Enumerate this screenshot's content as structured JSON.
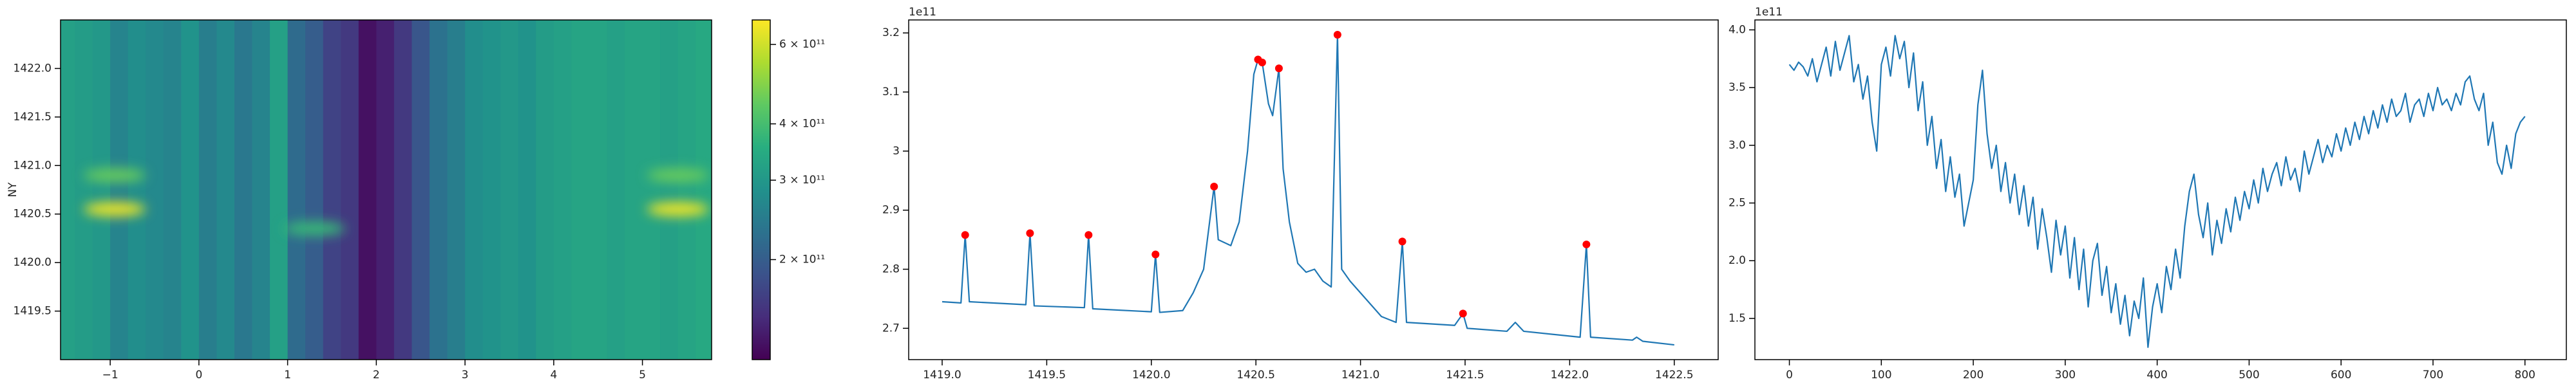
{
  "chart_data": [
    {
      "type": "heatmap",
      "ylabel": "NY",
      "xlim": [
        -1.56,
        5.78
      ],
      "ylim": [
        1419.0,
        1422.5
      ],
      "xticks": [
        {
          "value": -1,
          "label": "−1"
        },
        0,
        1,
        2,
        3,
        4,
        5
      ],
      "yticks": [
        1419.5,
        {
          "value": 1420,
          "label": "1420.0"
        },
        1420.5,
        {
          "value": 1421,
          "label": "1421.0"
        },
        1421.5,
        {
          "value": 1422,
          "label": "1422.0"
        }
      ],
      "x_edges": [
        -1.6,
        -1.4,
        -1.2,
        -1.0,
        -0.8,
        -0.6,
        -0.4,
        -0.2,
        0.0,
        0.2,
        0.4,
        0.6,
        0.8,
        1.0,
        1.2,
        1.4,
        1.6,
        1.8,
        2.0,
        2.2,
        2.4,
        2.6,
        2.8,
        3.0,
        3.2,
        3.4,
        3.6,
        3.8,
        4.0,
        4.2,
        4.4,
        4.6,
        4.8,
        5.0,
        5.2,
        5.4,
        5.6,
        5.8
      ],
      "column_values": [
        320000000000.0,
        310000000000.0,
        300000000000.0,
        260000000000.0,
        280000000000.0,
        270000000000.0,
        260000000000.0,
        290000000000.0,
        250000000000.0,
        270000000000.0,
        240000000000.0,
        260000000000.0,
        320000000000.0,
        220000000000.0,
        200000000000.0,
        170000000000.0,
        160000000000.0,
        130000000000.0,
        140000000000.0,
        160000000000.0,
        190000000000.0,
        230000000000.0,
        250000000000.0,
        280000000000.0,
        290000000000.0,
        300000000000.0,
        290000000000.0,
        310000000000.0,
        320000000000.0,
        330000000000.0,
        330000000000.0,
        320000000000.0,
        330000000000.0,
        330000000000.0,
        320000000000.0,
        330000000000.0,
        340000000000.0
      ],
      "hotspots": [
        {
          "x": -0.95,
          "y": 1420.55,
          "value": 650000000000.0
        },
        {
          "x": -0.95,
          "y": 1420.9,
          "value": 450000000000.0
        },
        {
          "x": 1.3,
          "y": 1420.35,
          "value": 380000000000.0
        },
        {
          "x": 5.4,
          "y": 1420.55,
          "value": 650000000000.0
        },
        {
          "x": 5.4,
          "y": 1420.9,
          "value": 450000000000.0
        }
      ],
      "colorbar": {
        "log": true,
        "colormap": "viridis",
        "lim": [
          120000000000.0,
          680000000000.0
        ],
        "ticks": [
          {
            "value": 200000000000.0,
            "label": "2 × 10¹¹"
          },
          {
            "value": 300000000000.0,
            "label": "3 × 10¹¹"
          },
          {
            "value": 400000000000.0,
            "label": "4 × 10¹¹"
          },
          {
            "value": 600000000000.0,
            "label": "6 × 10¹¹"
          }
        ]
      }
    },
    {
      "type": "line",
      "offset_text": "1e11",
      "xlim": [
        1418.84,
        1422.71
      ],
      "ylim": [
        2.647,
        3.222
      ],
      "xticks": [
        {
          "value": 1419,
          "label": "1419.0"
        },
        1419.5,
        {
          "value": 1420,
          "label": "1420.0"
        },
        1420.5,
        {
          "value": 1421,
          "label": "1421.0"
        },
        1421.5,
        {
          "value": 1422,
          "label": "1422.0"
        },
        1422.5
      ],
      "yticks": [
        2.7,
        2.8,
        2.9,
        3.0,
        3.1,
        3.2
      ],
      "x": [
        1419.0,
        1419.09,
        1419.11,
        1419.13,
        1419.4,
        1419.42,
        1419.44,
        1419.68,
        1419.7,
        1419.72,
        1420.0,
        1420.02,
        1420.04,
        1420.15,
        1420.2,
        1420.25,
        1420.3,
        1420.32,
        1420.38,
        1420.42,
        1420.46,
        1420.49,
        1420.51,
        1420.53,
        1420.56,
        1420.58,
        1420.61,
        1420.63,
        1420.66,
        1420.7,
        1420.74,
        1420.78,
        1420.82,
        1420.86,
        1420.89,
        1420.91,
        1420.95,
        1421.0,
        1421.1,
        1421.17,
        1421.2,
        1421.22,
        1421.45,
        1421.49,
        1421.51,
        1421.7,
        1421.74,
        1421.78,
        1422.05,
        1422.08,
        1422.1,
        1422.3,
        1422.32,
        1422.35,
        1422.5
      ],
      "series": [
        {
          "color": "#1f77b4",
          "values": [
            2.745,
            2.743,
            2.858,
            2.745,
            2.74,
            2.861,
            2.738,
            2.735,
            2.858,
            2.733,
            2.728,
            2.825,
            2.727,
            2.73,
            2.76,
            2.8,
            2.94,
            2.85,
            2.84,
            2.88,
            3.0,
            3.13,
            3.155,
            3.15,
            3.08,
            3.06,
            3.14,
            2.97,
            2.88,
            2.81,
            2.795,
            2.8,
            2.78,
            2.77,
            3.197,
            2.8,
            2.78,
            2.76,
            2.72,
            2.71,
            2.847,
            2.71,
            2.705,
            2.725,
            2.7,
            2.695,
            2.71,
            2.695,
            2.685,
            2.842,
            2.685,
            2.68,
            2.685,
            2.678,
            2.672
          ]
        }
      ],
      "markers": {
        "color": "#ff0000",
        "x": [
          1419.11,
          1419.42,
          1419.7,
          1420.02,
          1420.3,
          1420.51,
          1420.53,
          1420.61,
          1420.89,
          1421.2,
          1421.49,
          1422.08
        ],
        "values": [
          2.858,
          2.861,
          2.858,
          2.825,
          2.94,
          3.155,
          3.15,
          3.14,
          3.197,
          2.847,
          2.725,
          2.842
        ]
      }
    },
    {
      "type": "line",
      "offset_text": "1e11",
      "xlim": [
        -37.5,
        845
      ],
      "ylim": [
        1.143,
        4.086
      ],
      "xticks": [
        0,
        100,
        200,
        300,
        400,
        500,
        600,
        700,
        800
      ],
      "yticks": [
        1.5,
        {
          "value": 2,
          "label": "2.0"
        },
        2.5,
        {
          "value": 3,
          "label": "3.0"
        },
        3.5,
        {
          "value": 4,
          "label": "4.0"
        }
      ],
      "x": [
        0,
        5,
        10,
        15,
        20,
        25,
        30,
        35,
        40,
        45,
        50,
        55,
        60,
        65,
        70,
        75,
        80,
        85,
        90,
        95,
        100,
        105,
        110,
        115,
        120,
        125,
        130,
        135,
        140,
        145,
        150,
        155,
        160,
        165,
        170,
        175,
        180,
        185,
        190,
        195,
        200,
        205,
        210,
        215,
        220,
        225,
        230,
        235,
        240,
        245,
        250,
        255,
        260,
        265,
        270,
        275,
        280,
        285,
        290,
        295,
        300,
        305,
        310,
        315,
        320,
        325,
        330,
        335,
        340,
        345,
        350,
        355,
        360,
        365,
        370,
        375,
        380,
        385,
        390,
        395,
        400,
        405,
        410,
        415,
        420,
        425,
        430,
        435,
        440,
        445,
        450,
        455,
        460,
        465,
        470,
        475,
        480,
        485,
        490,
        495,
        500,
        505,
        510,
        515,
        520,
        525,
        530,
        535,
        540,
        545,
        550,
        555,
        560,
        565,
        570,
        575,
        580,
        585,
        590,
        595,
        600,
        605,
        610,
        615,
        620,
        625,
        630,
        635,
        640,
        645,
        650,
        655,
        660,
        665,
        670,
        675,
        680,
        685,
        690,
        695,
        700,
        705,
        710,
        715,
        720,
        725,
        730,
        735,
        740,
        745,
        750,
        755,
        760,
        765,
        770,
        775,
        780,
        785,
        790,
        795,
        800
      ],
      "series": [
        {
          "color": "#1f77b4",
          "values": [
            3.7,
            3.65,
            3.72,
            3.68,
            3.6,
            3.75,
            3.55,
            3.7,
            3.85,
            3.6,
            3.9,
            3.65,
            3.8,
            3.95,
            3.55,
            3.7,
            3.4,
            3.6,
            3.2,
            2.95,
            3.7,
            3.85,
            3.6,
            3.95,
            3.75,
            3.9,
            3.5,
            3.8,
            3.3,
            3.55,
            3.0,
            3.25,
            2.8,
            3.05,
            2.6,
            2.9,
            2.55,
            2.75,
            2.3,
            2.5,
            2.7,
            3.35,
            3.65,
            3.1,
            2.8,
            3.0,
            2.6,
            2.85,
            2.5,
            2.75,
            2.4,
            2.65,
            2.3,
            2.55,
            2.1,
            2.45,
            2.2,
            1.9,
            2.35,
            2.05,
            2.3,
            1.85,
            2.2,
            1.75,
            2.1,
            1.6,
            2.0,
            2.15,
            1.7,
            1.95,
            1.55,
            1.8,
            1.45,
            1.7,
            1.35,
            1.65,
            1.5,
            1.85,
            1.25,
            1.6,
            1.8,
            1.55,
            1.95,
            1.75,
            2.1,
            1.85,
            2.3,
            2.6,
            2.75,
            2.4,
            2.2,
            2.5,
            2.05,
            2.35,
            2.15,
            2.45,
            2.25,
            2.55,
            2.35,
            2.6,
            2.45,
            2.7,
            2.5,
            2.8,
            2.6,
            2.75,
            2.85,
            2.65,
            2.9,
            2.7,
            2.8,
            2.6,
            2.95,
            2.75,
            2.9,
            3.05,
            2.85,
            3.0,
            2.9,
            3.1,
            2.95,
            3.15,
            3.0,
            3.2,
            3.05,
            3.25,
            3.1,
            3.3,
            3.15,
            3.35,
            3.2,
            3.4,
            3.25,
            3.3,
            3.45,
            3.2,
            3.35,
            3.4,
            3.25,
            3.45,
            3.3,
            3.5,
            3.35,
            3.4,
            3.3,
            3.45,
            3.35,
            3.55,
            3.6,
            3.4,
            3.3,
            3.45,
            3.0,
            3.2,
            2.85,
            2.75,
            3.0,
            2.8,
            3.1,
            3.2,
            3.25
          ]
        }
      ]
    }
  ]
}
